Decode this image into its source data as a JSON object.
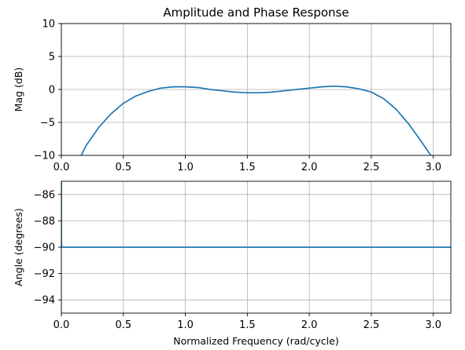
{
  "chart_data": [
    {
      "type": "line",
      "title": "Amplitude and Phase Response",
      "xlabel": "",
      "ylabel": "Mag (dB)",
      "xlim": [
        0,
        3.1416
      ],
      "ylim": [
        -10,
        10
      ],
      "xticks": [
        0.0,
        0.5,
        1.0,
        1.5,
        2.0,
        2.5,
        3.0
      ],
      "xtick_labels": [
        "0.0",
        "0.5",
        "1.0",
        "1.5",
        "2.0",
        "2.5",
        "3.0"
      ],
      "yticks": [
        10,
        5,
        0,
        -5,
        -10
      ],
      "ytick_labels": [
        "10",
        "5",
        "0",
        "−5",
        "−10"
      ],
      "grid": true,
      "color": "#1f77b4",
      "series": [
        {
          "x": [
            0.16,
            0.2,
            0.3,
            0.4,
            0.5,
            0.6,
            0.7,
            0.8,
            0.9,
            1.0,
            1.1,
            1.2,
            1.3,
            1.4,
            1.5,
            1.6,
            1.7,
            1.8,
            1.9,
            2.0,
            2.1,
            2.2,
            2.3,
            2.4,
            2.5,
            2.6,
            2.7,
            2.8,
            2.9,
            2.98
          ],
          "y": [
            -10.0,
            -8.5,
            -5.8,
            -3.7,
            -2.1,
            -1.0,
            -0.3,
            0.2,
            0.4,
            0.4,
            0.3,
            0.0,
            -0.2,
            -0.4,
            -0.5,
            -0.5,
            -0.4,
            -0.2,
            0.0,
            0.2,
            0.4,
            0.5,
            0.4,
            0.1,
            -0.4,
            -1.4,
            -3.0,
            -5.2,
            -7.8,
            -10.0
          ]
        }
      ]
    },
    {
      "type": "line",
      "title": "",
      "xlabel": "Normalized Frequency (rad/cycle)",
      "ylabel": "Angle (degrees)",
      "xlim": [
        0,
        3.1416
      ],
      "ylim": [
        -95,
        -85
      ],
      "xticks": [
        0.0,
        0.5,
        1.0,
        1.5,
        2.0,
        2.5,
        3.0
      ],
      "xtick_labels": [
        "0.0",
        "0.5",
        "1.0",
        "1.5",
        "2.0",
        "2.5",
        "3.0"
      ],
      "yticks": [
        -86,
        -88,
        -90,
        -92,
        -94
      ],
      "ytick_labels": [
        "−86",
        "−88",
        "−90",
        "−92",
        "−94"
      ],
      "grid": true,
      "color": "#1f77b4",
      "series": [
        {
          "x": [
            0.0,
            0.0,
            0.003,
            3.1416
          ],
          "y": [
            -85.0,
            -89.5,
            -90.0,
            -90.0
          ]
        }
      ]
    }
  ]
}
